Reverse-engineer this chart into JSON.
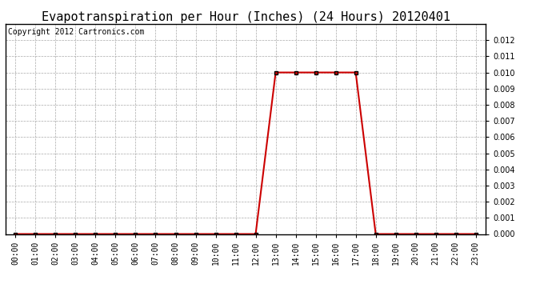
{
  "title": "Evapotranspiration per Hour (Inches) (24 Hours) 20120401",
  "copyright": "Copyright 2012 Cartronics.com",
  "hours": [
    0,
    1,
    2,
    3,
    4,
    5,
    6,
    7,
    8,
    9,
    10,
    11,
    12,
    13,
    14,
    15,
    16,
    17,
    18,
    19,
    20,
    21,
    22,
    23
  ],
  "values": [
    0.0,
    0.0,
    0.0,
    0.0,
    0.0,
    0.0,
    0.0,
    0.0,
    0.0,
    0.0,
    0.0,
    0.0,
    0.0,
    0.01,
    0.01,
    0.01,
    0.01,
    0.01,
    0.0,
    0.0,
    0.0,
    0.0,
    0.0,
    0.0
  ],
  "line_color": "#cc0000",
  "marker": "s",
  "marker_size": 3,
  "marker_color": "#000000",
  "marker_face_color": "#cc0000",
  "bg_color": "#ffffff",
  "grid_color": "#aaaaaa",
  "ylim": [
    0,
    0.013
  ],
  "yticks": [
    0.0,
    0.001,
    0.002,
    0.003,
    0.004,
    0.005,
    0.006,
    0.007,
    0.008,
    0.009,
    0.01,
    0.011,
    0.012
  ],
  "title_fontsize": 11,
  "copyright_fontsize": 7,
  "tick_label_fontsize": 7
}
